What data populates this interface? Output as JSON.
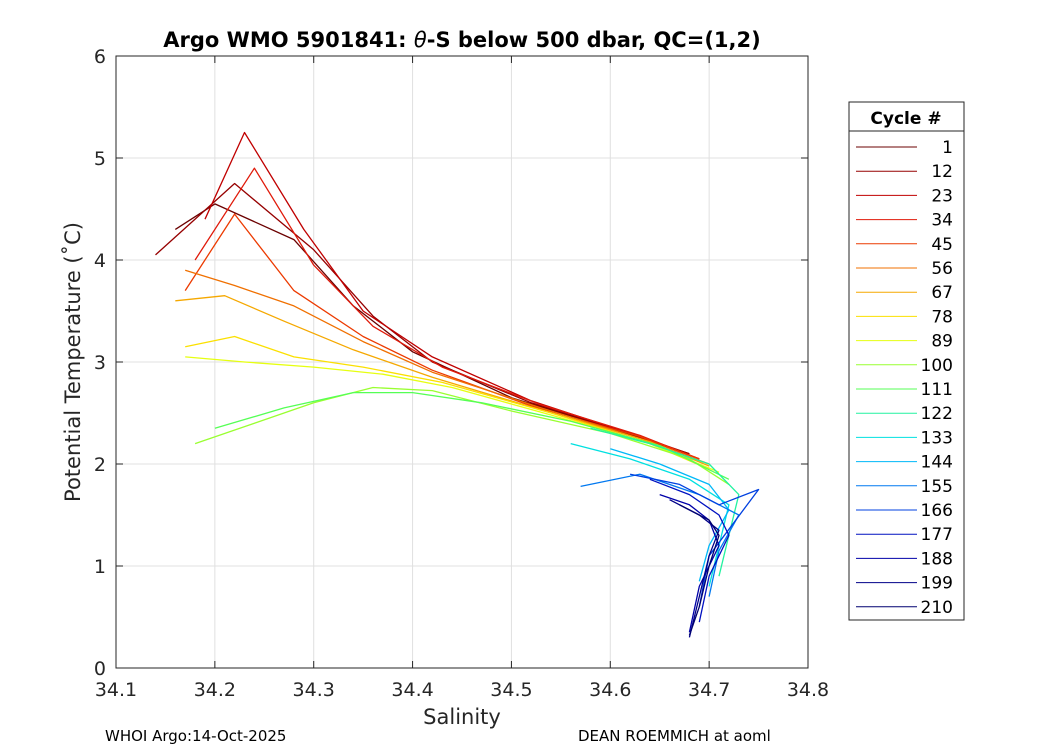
{
  "chart_data": {
    "type": "line",
    "title_prefix": "Argo WMO 5901841: ",
    "title_theta": "θ",
    "title_suffix": "-S below 500 dbar,  QC=(1,2)",
    "xlabel": "Salinity",
    "ylabel": "Potential Temperature (˚C)",
    "xlim": [
      34.1,
      34.8
    ],
    "ylim": [
      0,
      6
    ],
    "x_ticks": [
      "34.1",
      "34.2",
      "34.3",
      "34.4",
      "34.5",
      "34.6",
      "34.7",
      "34.8"
    ],
    "y_ticks": [
      "0",
      "1",
      "2",
      "3",
      "4",
      "5",
      "6"
    ],
    "grid": true,
    "legend": {
      "title": "Cycle #",
      "position": "right-outside",
      "entries": [
        "1",
        "12",
        "23",
        "34",
        "45",
        "56",
        "67",
        "78",
        "89",
        "100",
        "111",
        "122",
        "133",
        "144",
        "155",
        "166",
        "177",
        "188",
        "199",
        "210"
      ],
      "colors": [
        "#6b0000",
        "#960000",
        "#c00000",
        "#e01a0a",
        "#ec3a00",
        "#f07000",
        "#f5a800",
        "#fbe000",
        "#e6ff10",
        "#99ff30",
        "#55ff55",
        "#22f2a0",
        "#00e0e0",
        "#00b8f8",
        "#0078f0",
        "#0040e0",
        "#0010c0",
        "#0000a8",
        "#000088",
        "#000070"
      ]
    },
    "series": [
      {
        "name": "1",
        "salinity": [
          34.16,
          34.2,
          34.28,
          34.34,
          34.4,
          34.5,
          34.6,
          34.68
        ],
        "theta": [
          4.3,
          4.55,
          4.2,
          3.55,
          3.1,
          2.65,
          2.35,
          2.1
        ]
      },
      {
        "name": "12",
        "salinity": [
          34.14,
          34.22,
          34.3,
          34.36,
          34.42,
          34.52,
          34.62,
          34.68
        ],
        "theta": [
          4.05,
          4.75,
          4.1,
          3.45,
          3.0,
          2.6,
          2.3,
          2.1
        ]
      },
      {
        "name": "23",
        "salinity": [
          34.19,
          34.23,
          34.29,
          34.35,
          34.42,
          34.52,
          34.62,
          34.69
        ],
        "theta": [
          4.4,
          5.25,
          4.3,
          3.5,
          3.05,
          2.62,
          2.3,
          2.05
        ]
      },
      {
        "name": "34",
        "salinity": [
          34.18,
          34.24,
          34.3,
          34.36,
          34.43,
          34.53,
          34.63,
          34.69
        ],
        "theta": [
          4.0,
          4.9,
          3.95,
          3.35,
          2.95,
          2.58,
          2.28,
          2.05
        ]
      },
      {
        "name": "45",
        "salinity": [
          34.17,
          34.22,
          34.28,
          34.35,
          34.42,
          34.52,
          34.63,
          34.69
        ],
        "theta": [
          3.7,
          4.45,
          3.7,
          3.25,
          2.92,
          2.57,
          2.27,
          2.05
        ]
      },
      {
        "name": "56",
        "salinity": [
          34.17,
          34.22,
          34.28,
          34.35,
          34.42,
          34.53,
          34.63,
          34.7
        ],
        "theta": [
          3.9,
          3.75,
          3.55,
          3.2,
          2.9,
          2.55,
          2.25,
          2.0
        ]
      },
      {
        "name": "67",
        "salinity": [
          34.16,
          34.21,
          34.27,
          34.34,
          34.42,
          34.53,
          34.64,
          34.7
        ],
        "theta": [
          3.6,
          3.65,
          3.4,
          3.12,
          2.85,
          2.53,
          2.22,
          1.98
        ]
      },
      {
        "name": "78",
        "salinity": [
          34.17,
          34.22,
          34.28,
          34.35,
          34.43,
          34.54,
          34.64,
          34.7
        ],
        "theta": [
          3.15,
          3.25,
          3.05,
          2.95,
          2.8,
          2.5,
          2.2,
          1.95
        ]
      },
      {
        "name": "89",
        "salinity": [
          34.17,
          34.23,
          34.3,
          34.37,
          34.44,
          34.54,
          34.64,
          34.71
        ],
        "theta": [
          3.05,
          3.0,
          2.95,
          2.88,
          2.75,
          2.48,
          2.2,
          1.92
        ]
      },
      {
        "name": "100",
        "salinity": [
          34.18,
          34.24,
          34.3,
          34.36,
          34.42,
          34.5,
          34.6,
          34.68,
          34.72
        ],
        "theta": [
          2.2,
          2.4,
          2.6,
          2.75,
          2.72,
          2.52,
          2.3,
          2.05,
          1.8
        ]
      },
      {
        "name": "111",
        "salinity": [
          34.2,
          34.27,
          34.34,
          34.4,
          34.47,
          34.56,
          34.65,
          34.72
        ],
        "theta": [
          2.35,
          2.55,
          2.7,
          2.7,
          2.6,
          2.42,
          2.18,
          1.85
        ]
      },
      {
        "name": "122",
        "salinity": [
          34.58,
          34.64,
          34.7,
          34.73,
          34.72,
          34.71
        ],
        "theta": [
          2.35,
          2.2,
          2.0,
          1.7,
          1.3,
          0.9
        ]
      },
      {
        "name": "133",
        "salinity": [
          34.56,
          34.62,
          34.68,
          34.72,
          34.71,
          34.7
        ],
        "theta": [
          2.2,
          2.05,
          1.85,
          1.6,
          1.2,
          0.8
        ]
      },
      {
        "name": "144",
        "salinity": [
          34.6,
          34.65,
          34.7,
          34.72,
          34.7,
          34.69
        ],
        "theta": [
          2.15,
          2.0,
          1.8,
          1.55,
          1.2,
          0.85
        ]
      },
      {
        "name": "155",
        "salinity": [
          34.57,
          34.63,
          34.69,
          34.73,
          34.71,
          34.7
        ],
        "theta": [
          1.78,
          1.9,
          1.7,
          1.5,
          1.15,
          0.7
        ]
      },
      {
        "name": "166",
        "salinity": [
          34.62,
          34.67,
          34.71,
          34.75,
          34.7,
          34.69
        ],
        "theta": [
          1.9,
          1.8,
          1.6,
          1.75,
          1.1,
          0.6
        ]
      },
      {
        "name": "177",
        "salinity": [
          34.64,
          34.68,
          34.71,
          34.72,
          34.7,
          34.69
        ],
        "theta": [
          1.85,
          1.7,
          1.5,
          1.3,
          0.9,
          0.45
        ]
      },
      {
        "name": "188",
        "salinity": [
          34.65,
          34.68,
          34.7,
          34.71,
          34.69,
          34.68
        ],
        "theta": [
          1.7,
          1.6,
          1.45,
          1.2,
          0.8,
          0.35
        ]
      },
      {
        "name": "199",
        "salinity": [
          34.66,
          34.69,
          34.71,
          34.7,
          34.69,
          34.68
        ],
        "theta": [
          1.65,
          1.5,
          1.35,
          1.1,
          0.7,
          0.3
        ]
      },
      {
        "name": "210",
        "salinity": [
          34.67,
          34.7,
          34.71,
          34.7,
          34.69,
          34.68
        ],
        "theta": [
          1.6,
          1.45,
          1.3,
          1.0,
          0.6,
          0.32
        ]
      }
    ]
  },
  "footer": {
    "left": "WHOI Argo:14-Oct-2025",
    "right": "DEAN ROEMMICH at aoml"
  }
}
